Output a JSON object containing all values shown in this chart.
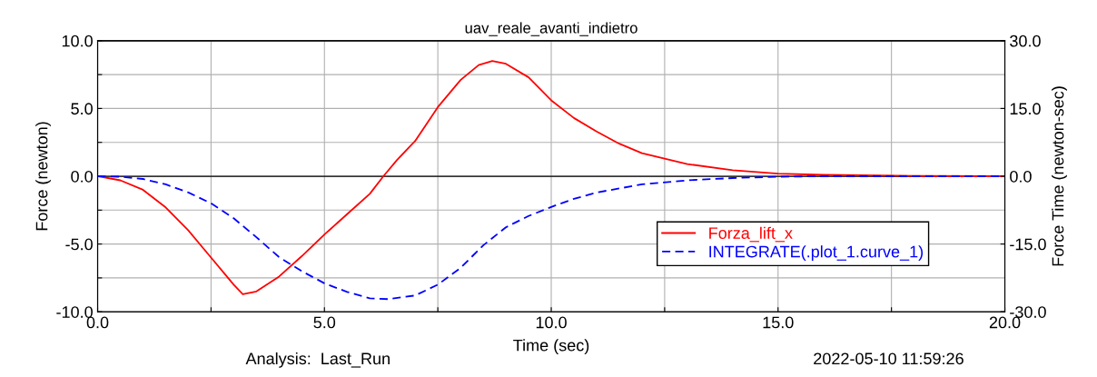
{
  "chart_data": {
    "type": "line",
    "title": "uav_reale_avanti_indietro",
    "xlabel": "Time (sec)",
    "ylabel": "Force (newton)",
    "y2label": "Force Time (newton-sec)",
    "annotations": [
      "Analysis:  Last_Run",
      "2022-05-10 11:59:26"
    ],
    "xlim": [
      0,
      20
    ],
    "ylim": [
      -10,
      10
    ],
    "y2lim": [
      -30,
      30
    ],
    "xticks": [
      {
        "value": 0,
        "label": "0.0"
      },
      {
        "value": 2.5,
        "label": null
      },
      {
        "value": 5,
        "label": "5.0"
      },
      {
        "value": 7.5,
        "label": null
      },
      {
        "value": 10,
        "label": "10.0"
      },
      {
        "value": 12.5,
        "label": null
      },
      {
        "value": 15,
        "label": "15.0"
      },
      {
        "value": 17.5,
        "label": null
      },
      {
        "value": 20,
        "label": "20.0"
      }
    ],
    "yticks": [
      {
        "value": -10,
        "label": "-10.0"
      },
      {
        "value": -7.5,
        "label": null
      },
      {
        "value": -5,
        "label": "-5.0"
      },
      {
        "value": -2.5,
        "label": null
      },
      {
        "value": 0,
        "label": "0.0"
      },
      {
        "value": 2.5,
        "label": null
      },
      {
        "value": 5,
        "label": "5.0"
      },
      {
        "value": 7.5,
        "label": null
      },
      {
        "value": 10,
        "label": "10.0"
      }
    ],
    "y2ticks": [
      {
        "value": -30,
        "label": "-30.0"
      },
      {
        "value": -15,
        "label": "-15.0"
      },
      {
        "value": 0,
        "label": "0.0"
      },
      {
        "value": 15,
        "label": "15.0"
      },
      {
        "value": 30,
        "label": "30.0"
      }
    ],
    "grid": true,
    "legend": "bottom right",
    "ref_lines": [
      {
        "axis": "y",
        "value": 0,
        "label": null,
        "color": "#000000"
      }
    ],
    "series": [
      {
        "name": "Forza_lift_x",
        "color": "#ff0000",
        "line_style": "solid",
        "x": [
          0,
          0.5,
          1,
          1.5,
          2,
          2.5,
          3,
          3.2,
          3.5,
          4,
          4.5,
          5,
          5.5,
          6,
          6.3,
          6.6,
          7,
          7.5,
          8,
          8.4,
          8.7,
          9,
          9.5,
          10,
          10.5,
          11,
          11.5,
          12,
          13,
          14,
          15,
          16,
          18,
          20
        ],
        "values": [
          0,
          -0.3,
          -1,
          -2.3,
          -4,
          -6,
          -8,
          -8.7,
          -8.5,
          -7.4,
          -5.9,
          -4.3,
          -2.8,
          -1.3,
          0,
          1.2,
          2.6,
          5.1,
          7.1,
          8.2,
          8.5,
          8.3,
          7.3,
          5.6,
          4.3,
          3.3,
          2.4,
          1.7,
          0.9,
          0.45,
          0.2,
          0.1,
          0.02,
          0
        ]
      },
      {
        "name": "INTEGRATE(.plot_1.curve_1)",
        "color": "#0000ff",
        "line_style": "dashed",
        "axis": "y2",
        "x": [
          0,
          0.5,
          1,
          1.5,
          2,
          2.5,
          3,
          3.5,
          4,
          4.5,
          5,
          5.5,
          6,
          6.4,
          7,
          7.5,
          8,
          8.5,
          9,
          9.5,
          10,
          10.5,
          11,
          12,
          13,
          14,
          15,
          16,
          18,
          20
        ],
        "values": [
          0,
          -0.1,
          -0.6,
          -1.8,
          -3.6,
          -6,
          -9.3,
          -13.5,
          -17.9,
          -21,
          -23.7,
          -25.6,
          -27,
          -27.2,
          -26.4,
          -24,
          -20.3,
          -15.3,
          -11.3,
          -8.8,
          -6.8,
          -5,
          -3.6,
          -1.8,
          -0.9,
          -0.4,
          -0.1,
          0,
          0,
          0
        ]
      }
    ]
  }
}
